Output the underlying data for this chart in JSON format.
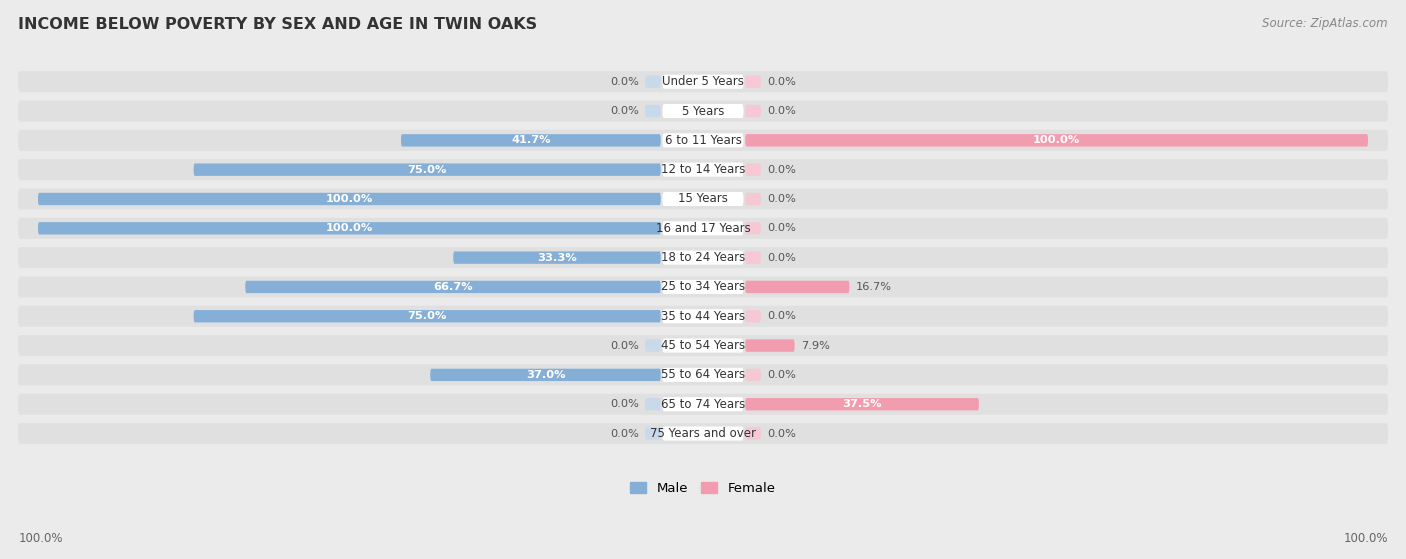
{
  "title": "INCOME BELOW POVERTY BY SEX AND AGE IN TWIN OAKS",
  "source": "Source: ZipAtlas.com",
  "categories": [
    "Under 5 Years",
    "5 Years",
    "6 to 11 Years",
    "12 to 14 Years",
    "15 Years",
    "16 and 17 Years",
    "18 to 24 Years",
    "25 to 34 Years",
    "35 to 44 Years",
    "45 to 54 Years",
    "55 to 64 Years",
    "65 to 74 Years",
    "75 Years and over"
  ],
  "male": [
    0.0,
    0.0,
    41.7,
    75.0,
    100.0,
    100.0,
    33.3,
    66.7,
    75.0,
    0.0,
    37.0,
    0.0,
    0.0
  ],
  "female": [
    0.0,
    0.0,
    100.0,
    0.0,
    0.0,
    0.0,
    0.0,
    16.7,
    0.0,
    7.9,
    0.0,
    37.5,
    0.0
  ],
  "male_color": "#85afd6",
  "female_color": "#f29cb0",
  "male_label": "Male",
  "female_label": "Female",
  "bg_color": "#ebebeb",
  "row_bg_color": "#e0e0e0",
  "bar_inner_bg_male": "#c8d9ea",
  "bar_inner_bg_female": "#f5c8d4",
  "white_label_bg": "#ffffff",
  "axis_label_left": "100.0%",
  "axis_label_right": "100.0%"
}
